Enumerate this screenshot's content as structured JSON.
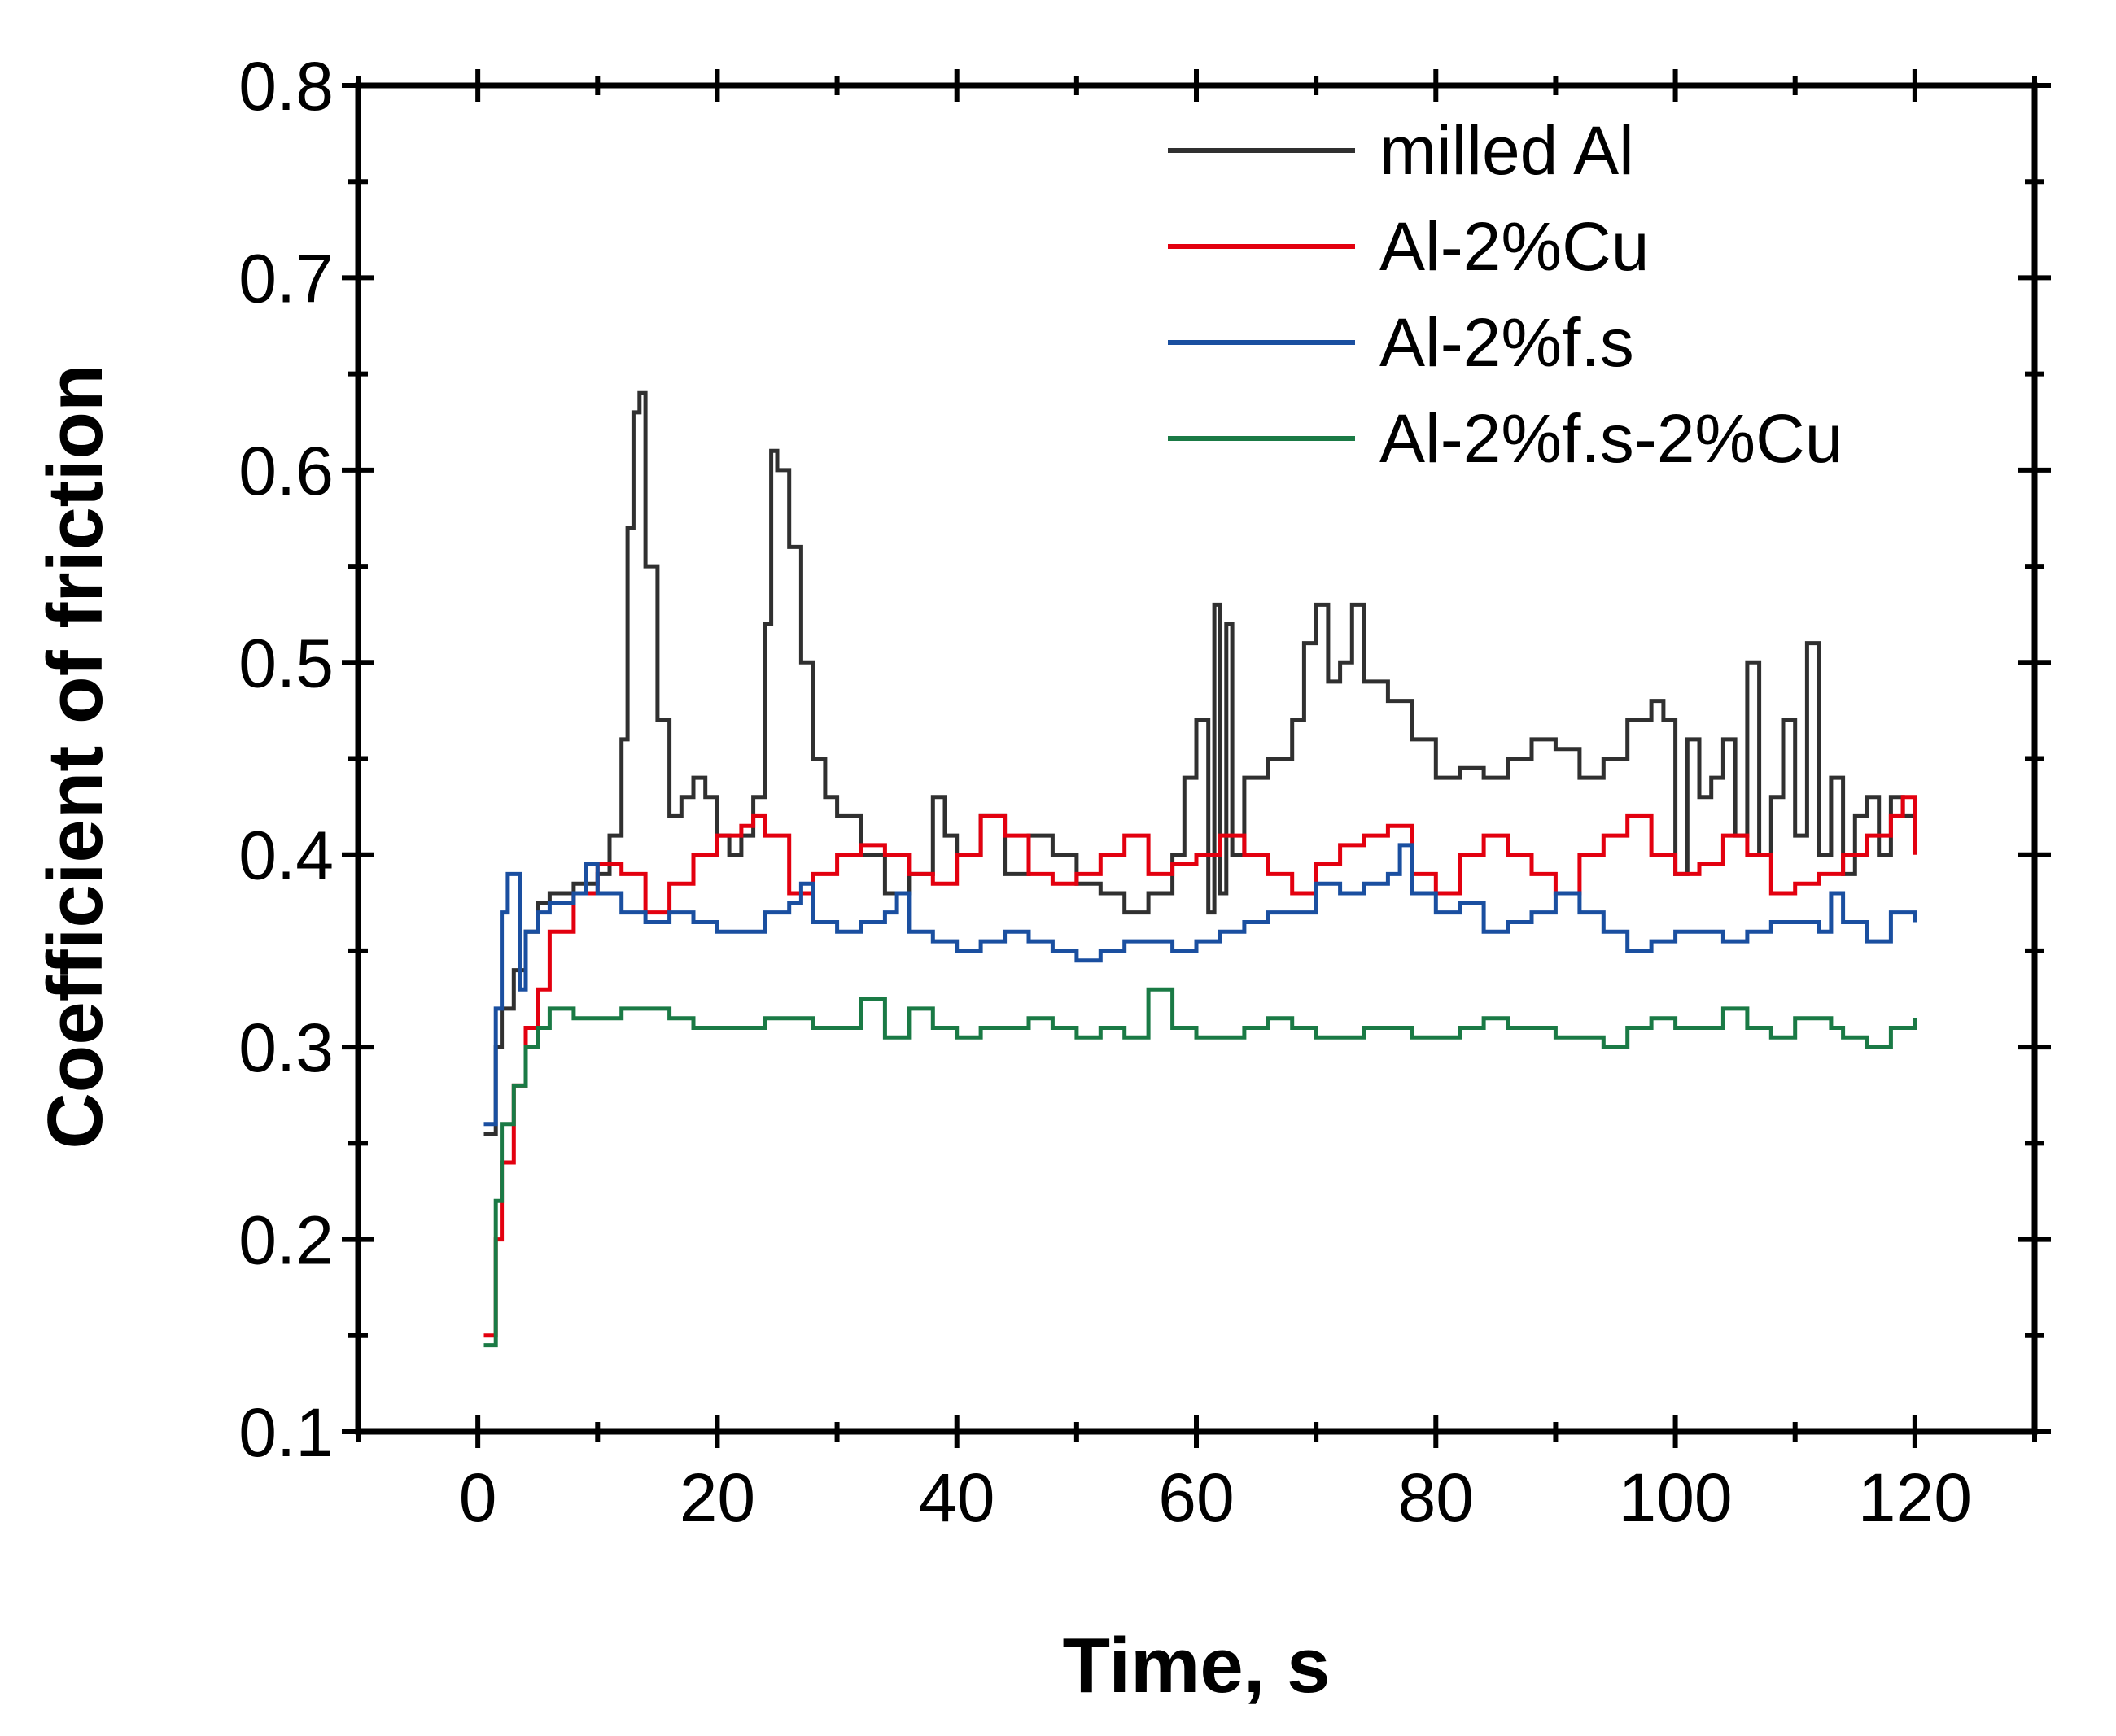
{
  "chart_data": {
    "type": "line",
    "xlabel": "Time, s",
    "ylabel": "Coefficient of friction",
    "xlim": [
      -10,
      130
    ],
    "ylim": [
      0.1,
      0.8
    ],
    "x_major_ticks": [
      0,
      20,
      40,
      60,
      80,
      100,
      120
    ],
    "x_tick_labels": [
      "0",
      "20",
      "40",
      "60",
      "80",
      "100",
      "120"
    ],
    "x_minor_ticks": [
      -10,
      10,
      30,
      50,
      70,
      90,
      110,
      130
    ],
    "y_major_ticks": [
      0.1,
      0.2,
      0.3,
      0.4,
      0.5,
      0.6,
      0.7,
      0.8
    ],
    "y_tick_labels": [
      "0.1",
      "0.2",
      "0.3",
      "0.4",
      "0.5",
      "0.6",
      "0.7",
      "0.8"
    ],
    "y_minor_ticks": [
      0.15,
      0.25,
      0.35,
      0.45,
      0.55,
      0.65,
      0.75
    ],
    "grid": false,
    "legend_position": "top-right",
    "series": [
      {
        "name": "milled Al",
        "color": "#303030",
        "x": [
          0.5,
          1,
          1.5,
          2,
          3,
          4,
          5,
          6,
          8,
          10,
          11,
          12,
          12.5,
          13,
          13.5,
          14,
          15,
          16,
          17,
          18,
          19,
          20,
          21,
          22,
          23,
          24,
          24.5,
          25,
          26,
          27,
          28,
          29,
          30,
          32,
          34,
          36,
          38,
          39,
          40,
          42,
          44,
          46,
          48,
          50,
          52,
          54,
          56,
          58,
          59,
          60,
          61,
          61.5,
          62,
          62.5,
          63,
          64,
          66,
          68,
          69,
          70,
          71,
          72,
          73,
          74,
          76,
          78,
          80,
          82,
          84,
          86,
          88,
          90,
          92,
          94,
          96,
          98,
          99,
          100,
          101,
          102,
          103,
          104,
          105,
          106,
          107,
          108,
          109,
          110,
          111,
          112,
          113,
          114,
          115,
          116,
          117,
          118,
          119,
          120
        ],
        "values": [
          0.255,
          0.255,
          0.3,
          0.32,
          0.34,
          0.36,
          0.375,
          0.38,
          0.385,
          0.39,
          0.41,
          0.46,
          0.57,
          0.63,
          0.64,
          0.55,
          0.47,
          0.42,
          0.43,
          0.44,
          0.43,
          0.41,
          0.4,
          0.41,
          0.43,
          0.52,
          0.61,
          0.6,
          0.56,
          0.5,
          0.45,
          0.43,
          0.42,
          0.4,
          0.38,
          0.39,
          0.43,
          0.41,
          0.4,
          0.42,
          0.39,
          0.41,
          0.4,
          0.385,
          0.38,
          0.37,
          0.38,
          0.4,
          0.44,
          0.47,
          0.37,
          0.53,
          0.38,
          0.52,
          0.4,
          0.44,
          0.45,
          0.47,
          0.51,
          0.53,
          0.49,
          0.5,
          0.53,
          0.49,
          0.48,
          0.46,
          0.44,
          0.445,
          0.44,
          0.45,
          0.46,
          0.455,
          0.44,
          0.45,
          0.47,
          0.48,
          0.47,
          0.39,
          0.46,
          0.43,
          0.44,
          0.46,
          0.41,
          0.5,
          0.4,
          0.43,
          0.47,
          0.41,
          0.51,
          0.4,
          0.44,
          0.39,
          0.42,
          0.43,
          0.4,
          0.43,
          0.42,
          0.43
        ]
      },
      {
        "name": "Al-2%Cu",
        "color": "#e3000f",
        "x": [
          0.5,
          1,
          1.5,
          2,
          3,
          4,
          5,
          6,
          8,
          10,
          12,
          14,
          16,
          18,
          20,
          22,
          23,
          24,
          26,
          28,
          30,
          32,
          34,
          36,
          38,
          40,
          42,
          44,
          46,
          48,
          50,
          52,
          54,
          56,
          58,
          60,
          62,
          64,
          66,
          68,
          70,
          72,
          74,
          76,
          78,
          80,
          82,
          84,
          86,
          88,
          90,
          92,
          94,
          96,
          98,
          100,
          102,
          104,
          106,
          108,
          110,
          112,
          114,
          116,
          118,
          119,
          120
        ],
        "values": [
          0.15,
          0.15,
          0.2,
          0.24,
          0.28,
          0.31,
          0.33,
          0.36,
          0.38,
          0.395,
          0.39,
          0.37,
          0.385,
          0.4,
          0.41,
          0.415,
          0.42,
          0.41,
          0.38,
          0.39,
          0.4,
          0.405,
          0.4,
          0.39,
          0.385,
          0.4,
          0.42,
          0.41,
          0.39,
          0.385,
          0.39,
          0.4,
          0.41,
          0.39,
          0.395,
          0.4,
          0.41,
          0.4,
          0.39,
          0.38,
          0.395,
          0.405,
          0.41,
          0.415,
          0.39,
          0.38,
          0.4,
          0.41,
          0.4,
          0.39,
          0.38,
          0.4,
          0.41,
          0.42,
          0.4,
          0.39,
          0.395,
          0.41,
          0.4,
          0.38,
          0.385,
          0.39,
          0.4,
          0.41,
          0.42,
          0.43,
          0.4
        ]
      },
      {
        "name": "Al-2%f.s",
        "color": "#1a4fa0",
        "x": [
          0.5,
          1,
          1.5,
          2,
          2.5,
          3,
          3.5,
          4,
          5,
          6,
          8,
          9,
          10,
          12,
          14,
          16,
          18,
          20,
          22,
          24,
          26,
          27,
          28,
          30,
          32,
          34,
          35,
          36,
          38,
          40,
          42,
          44,
          46,
          48,
          50,
          52,
          54,
          56,
          58,
          60,
          62,
          64,
          66,
          68,
          70,
          72,
          74,
          76,
          77,
          78,
          80,
          82,
          84,
          86,
          88,
          90,
          92,
          94,
          96,
          98,
          100,
          102,
          104,
          106,
          108,
          110,
          112,
          113,
          114,
          116,
          118,
          120
        ],
        "values": [
          0.26,
          0.26,
          0.32,
          0.37,
          0.39,
          0.39,
          0.33,
          0.36,
          0.37,
          0.375,
          0.38,
          0.395,
          0.38,
          0.37,
          0.365,
          0.37,
          0.365,
          0.36,
          0.36,
          0.37,
          0.375,
          0.385,
          0.365,
          0.36,
          0.365,
          0.37,
          0.38,
          0.36,
          0.355,
          0.35,
          0.355,
          0.36,
          0.355,
          0.35,
          0.345,
          0.35,
          0.355,
          0.355,
          0.35,
          0.355,
          0.36,
          0.365,
          0.37,
          0.37,
          0.385,
          0.38,
          0.385,
          0.39,
          0.405,
          0.38,
          0.37,
          0.375,
          0.36,
          0.365,
          0.37,
          0.38,
          0.37,
          0.36,
          0.35,
          0.355,
          0.36,
          0.36,
          0.355,
          0.36,
          0.365,
          0.365,
          0.36,
          0.38,
          0.365,
          0.355,
          0.37,
          0.365
        ]
      },
      {
        "name": "Al-2%f.s-2%Cu",
        "color": "#1a7a45",
        "x": [
          0.5,
          1,
          1.5,
          2,
          3,
          4,
          5,
          6,
          8,
          10,
          12,
          14,
          16,
          18,
          20,
          22,
          24,
          26,
          28,
          30,
          32,
          34,
          36,
          38,
          40,
          42,
          44,
          46,
          48,
          50,
          52,
          54,
          56,
          58,
          60,
          62,
          64,
          66,
          68,
          70,
          72,
          74,
          76,
          78,
          80,
          82,
          84,
          86,
          88,
          90,
          92,
          94,
          96,
          98,
          100,
          102,
          104,
          106,
          108,
          110,
          112,
          113,
          114,
          116,
          118,
          120
        ],
        "values": [
          0.145,
          0.145,
          0.22,
          0.26,
          0.28,
          0.3,
          0.31,
          0.32,
          0.315,
          0.315,
          0.32,
          0.32,
          0.315,
          0.31,
          0.31,
          0.31,
          0.315,
          0.315,
          0.31,
          0.31,
          0.325,
          0.305,
          0.32,
          0.31,
          0.305,
          0.31,
          0.31,
          0.315,
          0.31,
          0.305,
          0.31,
          0.305,
          0.33,
          0.31,
          0.305,
          0.305,
          0.31,
          0.315,
          0.31,
          0.305,
          0.305,
          0.31,
          0.31,
          0.305,
          0.305,
          0.31,
          0.315,
          0.31,
          0.31,
          0.305,
          0.305,
          0.3,
          0.31,
          0.315,
          0.31,
          0.31,
          0.32,
          0.31,
          0.305,
          0.315,
          0.315,
          0.31,
          0.305,
          0.3,
          0.31,
          0.315
        ]
      }
    ]
  }
}
